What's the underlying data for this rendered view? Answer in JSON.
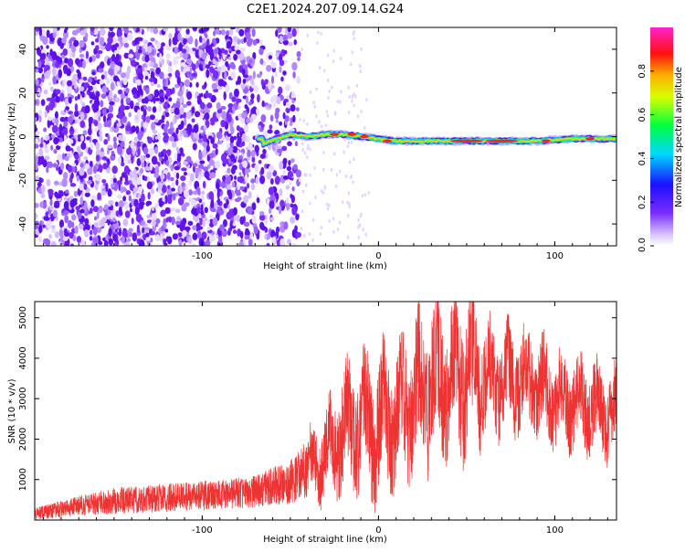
{
  "title": "C2E1.2024.207.09.14.G24",
  "colors": {
    "snr_line": "#ee3333",
    "background_scatter": "#7722ee",
    "frame": "#000000"
  },
  "chart_data": [
    {
      "type": "heatmap",
      "xlabel": "Height of straight line (km)",
      "ylabel": "Frequency (Hz)",
      "xlim": [
        -195,
        135
      ],
      "ylim": [
        -50,
        50
      ],
      "xticks": [
        -100,
        0,
        100
      ],
      "yticks": [
        40,
        20,
        0,
        -20,
        -40
      ],
      "colorbar": {
        "label": "Normalized spectral amplitude",
        "ticks": [
          "0.0",
          "0.2",
          "0.4",
          "0.6",
          "0.8"
        ],
        "range": [
          0,
          1
        ],
        "colormap": "rainbow-violet-to-magenta"
      },
      "signal_trace": {
        "description_points_km": [
          -65,
          -50,
          -40,
          -30,
          -20,
          -10,
          0,
          10,
          30,
          50,
          70,
          90,
          110,
          135
        ],
        "frequency_hz": [
          -3,
          1,
          0,
          1,
          1,
          0,
          -1,
          -2,
          -2,
          -2,
          -2,
          -2,
          -1,
          -1
        ]
      }
    },
    {
      "type": "line",
      "xlabel": "Height of straight line (km)",
      "ylabel": "SNR (10 * v/v)",
      "xlim": [
        -195,
        135
      ],
      "ylim": [
        0,
        5400
      ],
      "xticks": [
        -100,
        0,
        100
      ],
      "yticks": [
        1000,
        2000,
        3000,
        4000,
        5000
      ],
      "envelope_x_km": [
        -195,
        -170,
        -150,
        -120,
        -90,
        -70,
        -50,
        -30,
        -20,
        -10,
        0,
        10,
        20,
        30,
        40,
        50,
        60,
        70,
        80,
        90,
        100,
        110,
        120,
        135
      ],
      "envelope_low": [
        0,
        100,
        150,
        200,
        250,
        300,
        400,
        700,
        900,
        1000,
        800,
        1200,
        1500,
        1800,
        2000,
        2000,
        2200,
        2400,
        2300,
        2200,
        2000,
        1900,
        1800,
        1600
      ],
      "envelope_high": [
        300,
        600,
        800,
        900,
        1000,
        1100,
        1500,
        2500,
        3500,
        3800,
        3800,
        4200,
        4500,
        5100,
        5000,
        5300,
        4700,
        4600,
        4600,
        4400,
        4000,
        3900,
        3800,
        3500
      ]
    }
  ]
}
